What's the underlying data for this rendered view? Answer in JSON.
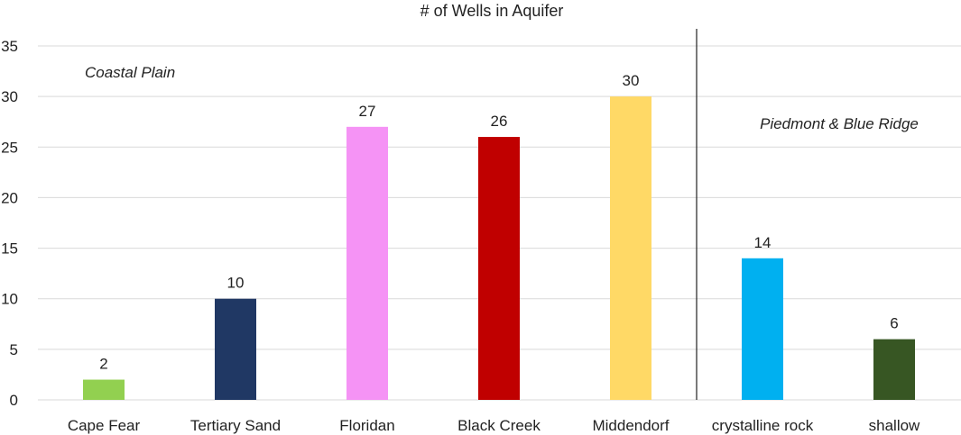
{
  "chart_data": {
    "type": "bar",
    "title": "# of Wells in Aquifer",
    "xlabel": "",
    "ylabel": "",
    "ylim": [
      0,
      35
    ],
    "yticks": [
      0,
      5,
      10,
      15,
      20,
      25,
      30,
      35
    ],
    "grid": true,
    "legend": "none",
    "categories": [
      "Cape Fear",
      "Tertiary Sand",
      "Floridan",
      "Black Creek",
      "Middendorf",
      "crystalline rock",
      "shallow"
    ],
    "values": [
      2,
      10,
      27,
      26,
      30,
      14,
      6
    ],
    "colors": [
      "#92d050",
      "#203864",
      "#f593f5",
      "#c00000",
      "#ffd966",
      "#00b0f0",
      "#375623"
    ],
    "data_labels": [
      "2",
      "10",
      "27",
      "26",
      "30",
      "14",
      "6"
    ],
    "annotations": [
      {
        "text": "Coastal Plain",
        "region": "Coastal Plain"
      },
      {
        "text": "Piedmont & Blue Ridge",
        "region": "Piedmont & Blue Ridge"
      }
    ],
    "divider_after_category": "Middendorf"
  }
}
